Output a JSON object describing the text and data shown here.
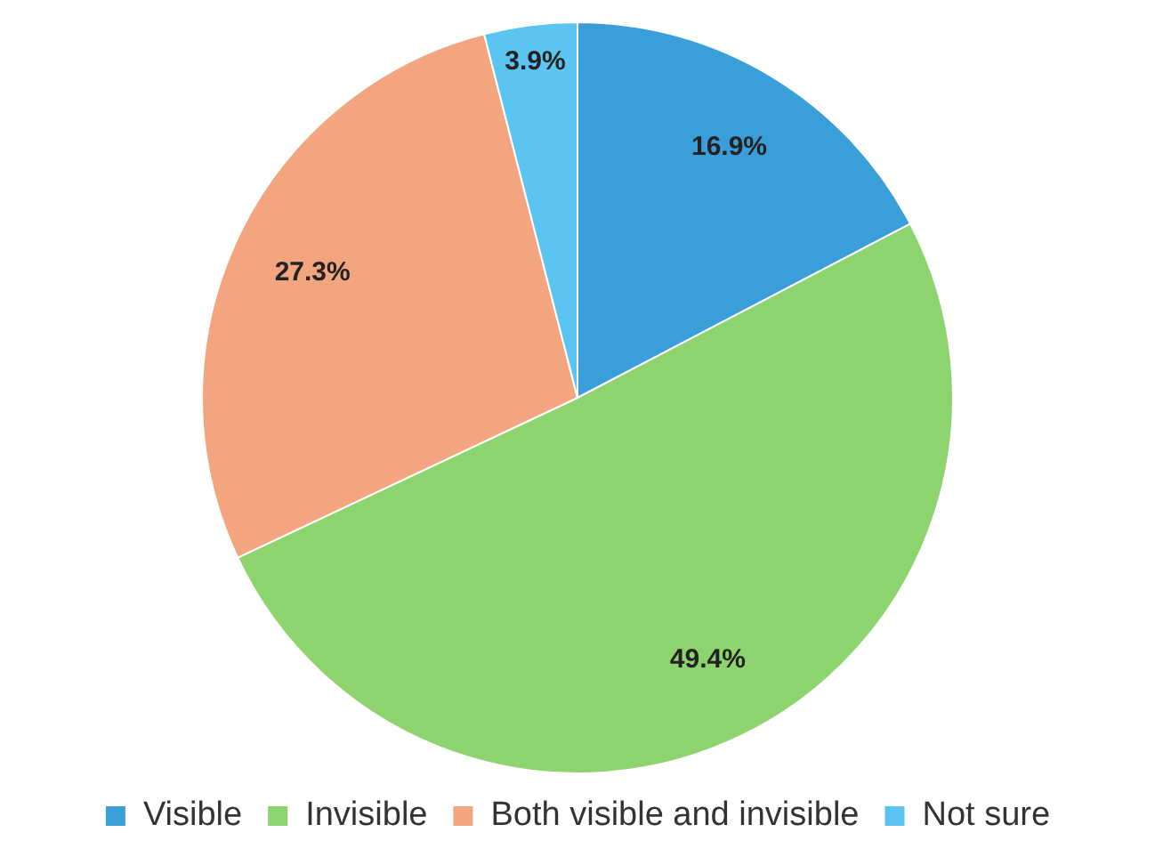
{
  "chart_data": {
    "type": "pie",
    "categories": [
      "Visible",
      "Invisible",
      "Both visible and invisible",
      "Not sure"
    ],
    "values": [
      16.9,
      49.4,
      27.3,
      3.9
    ],
    "colors": [
      "#3a9fd8",
      "#8dd36e",
      "#f2a57f",
      "#5bc4f0"
    ],
    "value_labels": [
      "16.9%",
      "49.4%",
      "27.3%",
      "3.9%"
    ],
    "legend": "bottom"
  }
}
